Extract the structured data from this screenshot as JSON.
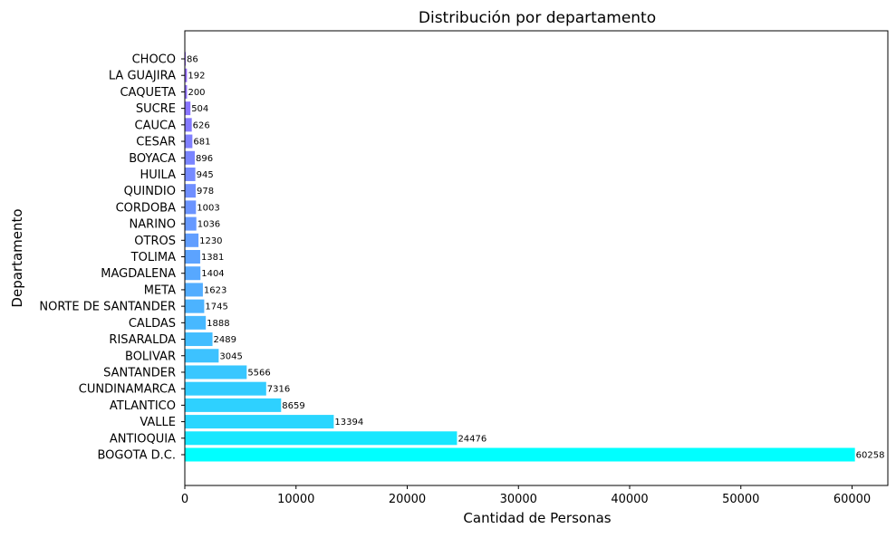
{
  "chart_data": {
    "type": "bar",
    "orientation": "horizontal",
    "title": "Distribución por departamento",
    "xlabel": "Cantidad de Personas",
    "ylabel": "Departamento",
    "categories": [
      "BOGOTA D.C.",
      "ANTIOQUIA",
      "VALLE",
      "ATLANTICO",
      "CUNDINAMARCA",
      "SANTANDER",
      "BOLIVAR",
      "RISARALDA",
      "CALDAS",
      "NORTE DE SANTANDER",
      "META",
      "MAGDALENA",
      "TOLIMA",
      "OTROS",
      "NARINO",
      "CORDOBA",
      "QUINDIO",
      "HUILA",
      "BOYACA",
      "CESAR",
      "CAUCA",
      "SUCRE",
      "CAQUETA",
      "LA GUAJIRA",
      "CHOCO"
    ],
    "values": [
      60258,
      24476,
      13394,
      8659,
      7316,
      5566,
      3045,
      2489,
      1888,
      1745,
      1623,
      1404,
      1381,
      1230,
      1036,
      1003,
      978,
      945,
      896,
      681,
      626,
      504,
      200,
      192,
      86
    ],
    "data_labels": [
      "60258",
      "24476",
      "13394",
      "8659",
      "7316",
      "5566",
      "3045",
      "2489",
      "1888",
      "1745",
      "1623",
      "1404",
      "1381",
      "1230",
      "1036",
      "1003",
      "978",
      "945",
      "896",
      "681",
      "626",
      "504",
      "200",
      "192",
      "86"
    ],
    "xticks": [
      "0",
      "10000",
      "20000",
      "30000",
      "40000",
      "50000",
      "60000"
    ],
    "xtick_values": [
      0,
      10000,
      20000,
      30000,
      40000,
      50000,
      60000
    ],
    "xlim": [
      0,
      63271
    ],
    "colormap": "cool",
    "colors": [
      "#00ffff",
      "#18e7ff",
      "#29d6ff",
      "#2ed1ff",
      "#33ccff",
      "#38c7ff",
      "#3dc2ff",
      "#42bdff",
      "#47b8ff",
      "#4cb3ff",
      "#52adff",
      "#57a8ff",
      "#5ca3ff",
      "#619eff",
      "#6699ff",
      "#6b94ff",
      "#708fff",
      "#758aff",
      "#7a85ff",
      "#8080ff",
      "#857aff",
      "#8a75ff",
      "#8f70ff",
      "#946bff",
      "#9966ff"
    ],
    "grid": false,
    "legend": "none"
  }
}
